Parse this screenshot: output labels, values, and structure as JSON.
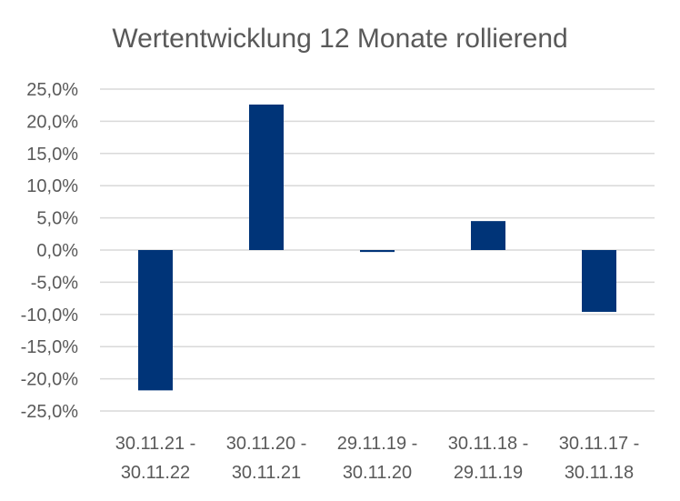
{
  "chart_data": {
    "type": "bar",
    "title": "Wertentwicklung 12 Monate rollierend",
    "categories": [
      [
        "30.11.21 -",
        "30.11.22"
      ],
      [
        "30.11.20 -",
        "30.11.21"
      ],
      [
        "29.11.19 -",
        "30.11.20"
      ],
      [
        "30.11.18 -",
        "29.11.19"
      ],
      [
        "30.11.17 -",
        "30.11.18"
      ]
    ],
    "values": [
      -21.8,
      22.6,
      -0.3,
      4.5,
      -9.6
    ],
    "ylim": [
      -25,
      25
    ],
    "yticks": [
      25,
      20,
      15,
      10,
      5,
      0,
      -5,
      -10,
      -15,
      -20,
      -25
    ],
    "ytick_labels": [
      "25,0%",
      "20,0%",
      "15,0%",
      "10,0%",
      "5,0%",
      "0,0%",
      "-5,0%",
      "-10,0%",
      "-15,0%",
      "-20,0%",
      "-25,0%"
    ],
    "grid": true,
    "bar_color": "#003478",
    "grid_color": "#d9d9d9"
  }
}
